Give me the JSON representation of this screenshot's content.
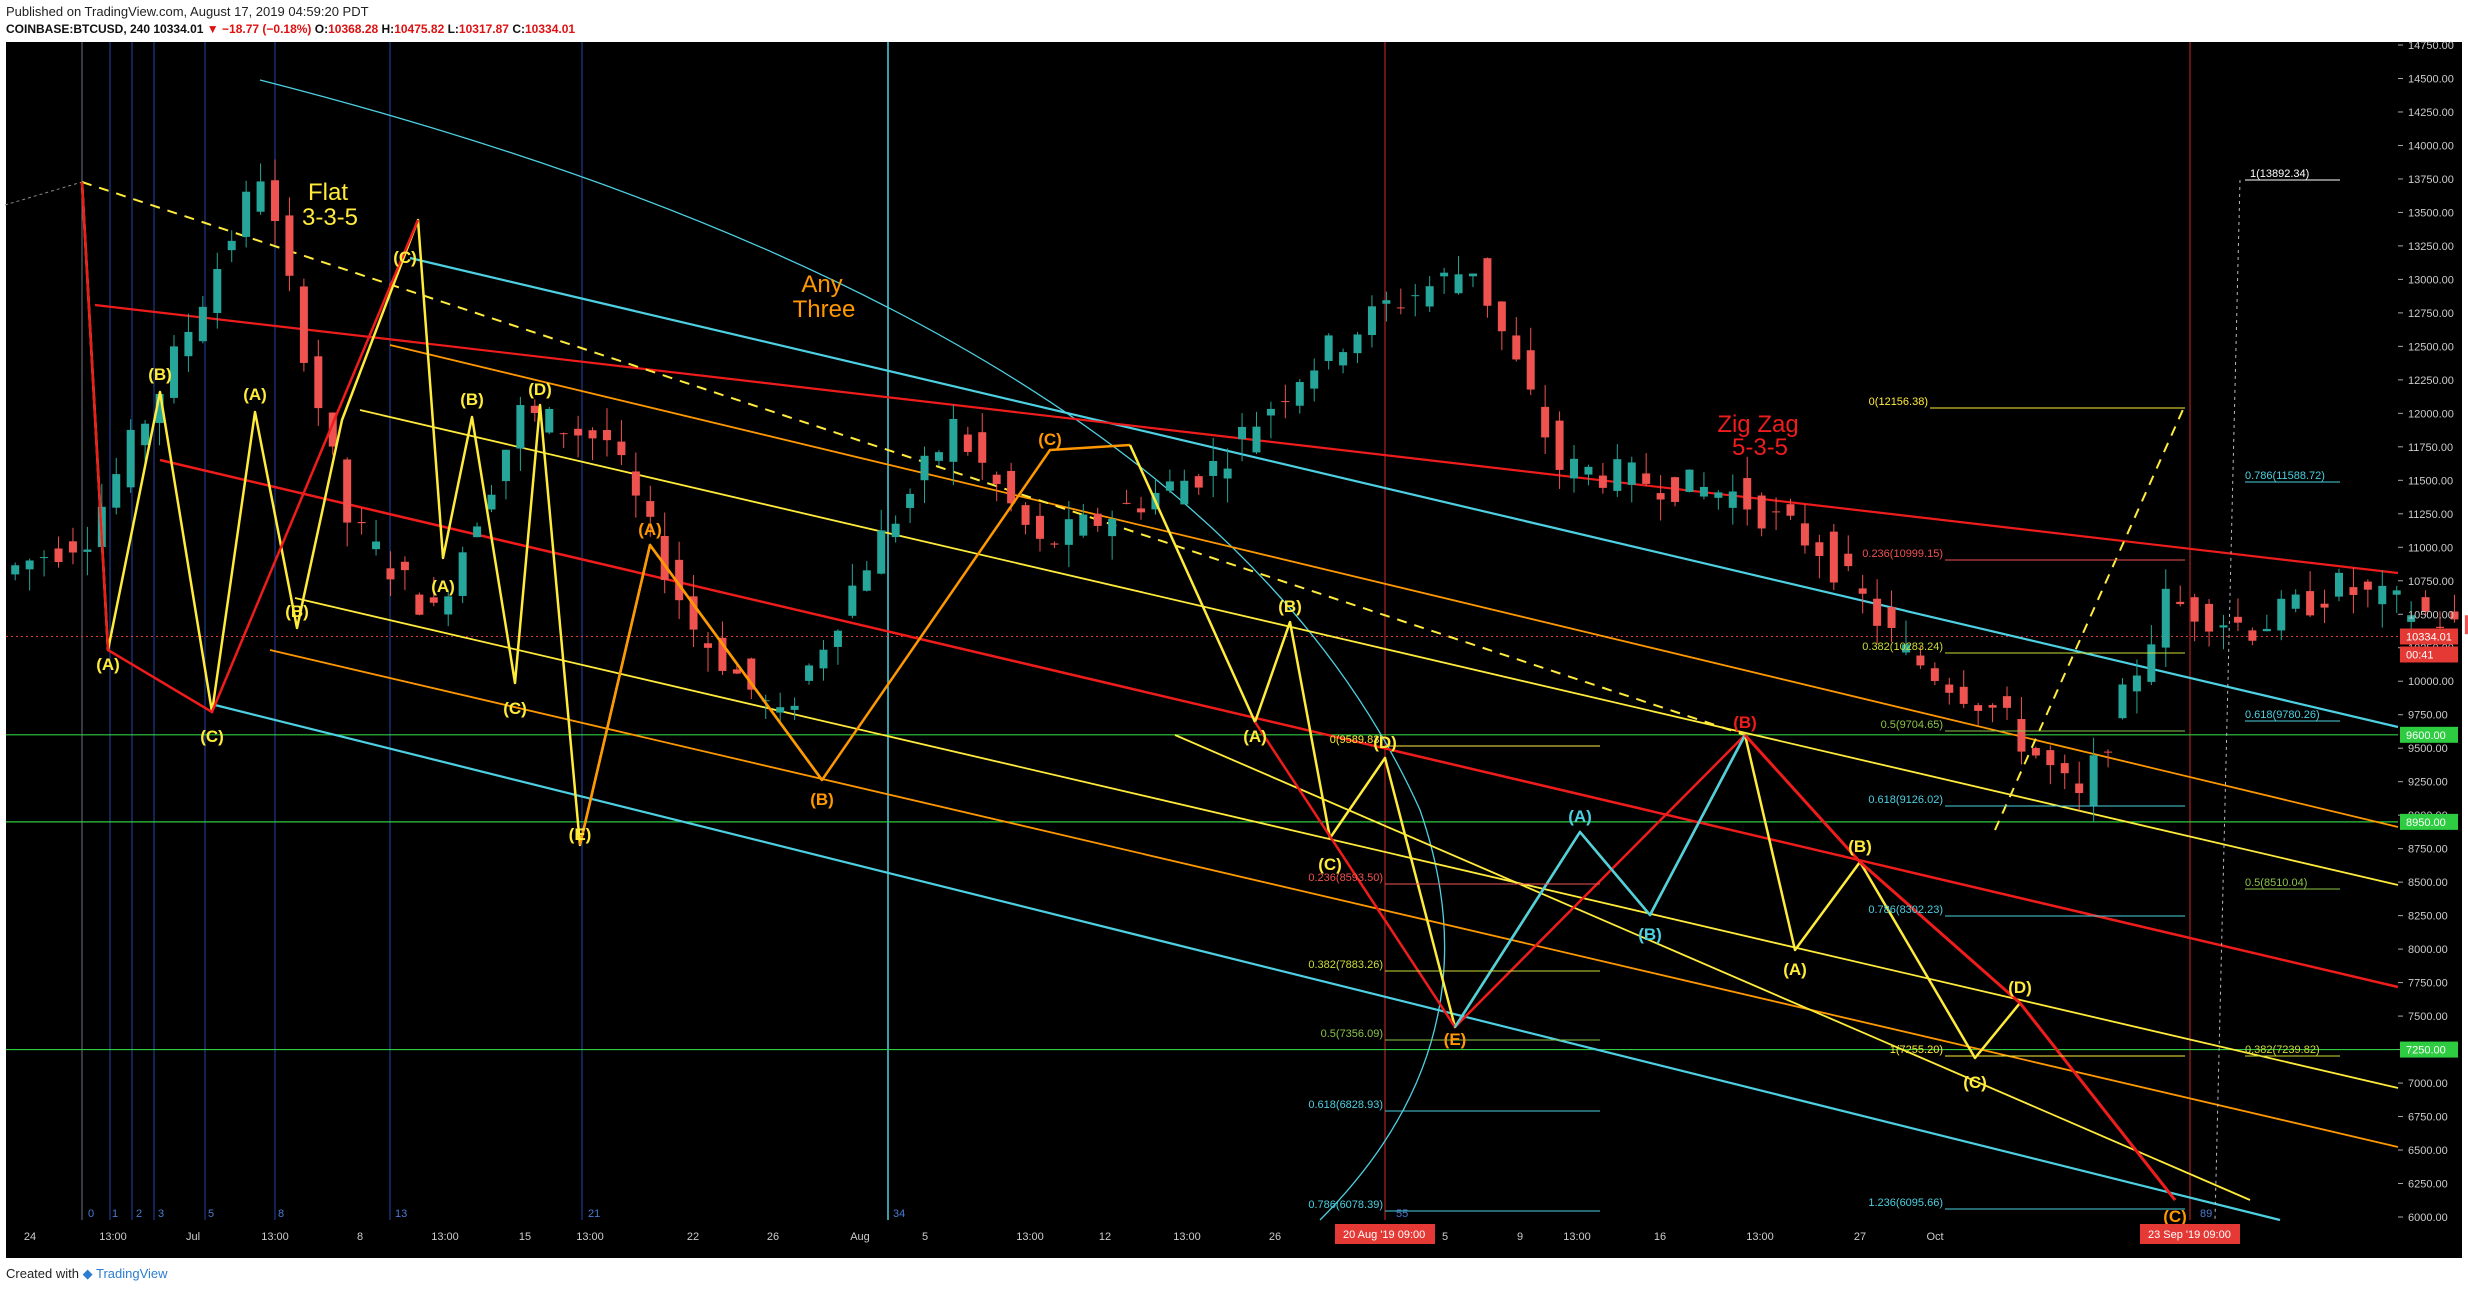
{
  "header": {
    "published": "Published on TradingView.com, August 17, 2019 04:59:20 PDT",
    "symbol": "COINBASE:BTCUSD, 240",
    "last": "10334.01",
    "change": "−18.77 (−0.18%)",
    "o_label": "O:",
    "o": "10368.28",
    "h_label": "H:",
    "h": "10475.82",
    "l_label": "L:",
    "l": "10317.87",
    "c_label": "C:",
    "c": "10334.01"
  },
  "footer": {
    "created": "Created with",
    "brand": "TradingView"
  },
  "chart_data": {
    "type": "candlestick",
    "symbol": "BTCUSD",
    "timeframe": "240",
    "ylim": [
      6000,
      14750
    ],
    "y_ticks": [
      "6000.00",
      "6250.00",
      "6500.00",
      "6750.00",
      "7000.00",
      "7250.00",
      "7500.00",
      "7750.00",
      "8000.00",
      "8250.00",
      "8500.00",
      "8750.00",
      "9000.00",
      "9250.00",
      "9500.00",
      "9750.00",
      "10000.00",
      "10250.00",
      "10500.00",
      "10750.00",
      "11000.00",
      "11250.00",
      "11500.00",
      "11750.00",
      "12000.00",
      "12250.00",
      "12500.00",
      "12750.00",
      "13000.00",
      "13250.00",
      "13500.00",
      "13750.00",
      "14000.00",
      "14250.00",
      "14500.00",
      "14750.00"
    ],
    "x_ticks": [
      "24",
      "13:00",
      "Jul",
      "13:00",
      "8",
      "13:00",
      "15",
      "13:00",
      "22",
      "26",
      "Aug",
      "5",
      "13:00",
      "12",
      "13:00",
      "26",
      "Sep",
      "5",
      "9",
      "13:00",
      "16",
      "13:00",
      "27",
      "Oct"
    ],
    "price_badges": [
      {
        "value": "10334.01",
        "color": "#e53935"
      },
      {
        "value": "00:41",
        "color": "#e53935"
      },
      {
        "value": "9600.00",
        "color": "#2ecc40"
      },
      {
        "value": "8950.00",
        "color": "#2ecc40"
      },
      {
        "value": "7250.00",
        "color": "#2ecc40"
      }
    ],
    "date_badges": [
      {
        "text": "20 Aug '19",
        "time": "09:00"
      },
      {
        "text": "23 Sep '19",
        "time": "09:00"
      }
    ],
    "cycle_numbers": [
      "0",
      "1",
      "2",
      "3",
      "5",
      "8",
      "13",
      "21",
      "34",
      "55",
      "89"
    ],
    "annotations": {
      "flat": [
        "Flat",
        "3-3-5"
      ],
      "any_three": [
        "Any",
        "Three"
      ],
      "zig_zag": [
        "Zig Zag",
        "5-3-5"
      ]
    },
    "wave_labels": [
      "(A)",
      "(B)",
      "(C)",
      "(D)",
      "(E)"
    ],
    "fib_levels": [
      {
        "label": "1(13892.34)",
        "price": 13892.34,
        "color": "#ffffff"
      },
      {
        "label": "0(12156.38)",
        "price": 12156.38,
        "color": "#ffeb3b"
      },
      {
        "label": "0.786(11588.72)",
        "price": 11588.72,
        "color": "#4dd0e1"
      },
      {
        "label": "0.236(10999.15)",
        "price": 10999.15,
        "color": "#ef5350"
      },
      {
        "label": "0.382(10283.24)",
        "price": 10283.24,
        "color": "#cddc39"
      },
      {
        "label": "0.618(9780.26)",
        "price": 9780.26,
        "color": "#4dd0e1"
      },
      {
        "label": "0.5(9704.65)",
        "price": 9704.65,
        "color": "#8bc34a"
      },
      {
        "label": "0(9589.83)",
        "price": 9589.83,
        "color": "#ffeb3b"
      },
      {
        "label": "0.618(9126.02)",
        "price": 9126.02,
        "color": "#4dd0e1"
      },
      {
        "label": "0.236(8593.50)",
        "price": 8593.5,
        "color": "#ef5350"
      },
      {
        "label": "0.5(8510.04)",
        "price": 8510.04,
        "color": "#8bc34a"
      },
      {
        "label": "0.786(8302.23)",
        "price": 8302.23,
        "color": "#4dd0e1"
      },
      {
        "label": "0.382(7883.26)",
        "price": 7883.26,
        "color": "#cddc39"
      },
      {
        "label": "0.5(7356.09)",
        "price": 7356.09,
        "color": "#8bc34a"
      },
      {
        "label": "1(7255.20)",
        "price": 7255.2,
        "color": "#ffeb3b"
      },
      {
        "label": "0.382(7239.82)",
        "price": 7239.82,
        "color": "#cddc39"
      },
      {
        "label": "0.618(6828.93)",
        "price": 6828.93,
        "color": "#4dd0e1"
      },
      {
        "label": "1.236(6095.66)",
        "price": 6095.66,
        "color": "#4dd0e1"
      },
      {
        "label": "0.786(6078.39)",
        "price": 6078.39,
        "color": "#4dd0e1"
      }
    ],
    "price_path": [
      [
        "Jun 23",
        10800
      ],
      [
        "Jun 24",
        11100
      ],
      [
        "Jun 25",
        12400
      ],
      [
        "Jun 26",
        13800
      ],
      [
        "Jun 27",
        11200
      ],
      [
        "Jun 28",
        10500
      ],
      [
        "Jun 29",
        12000
      ],
      [
        "Jun 30",
        11800
      ],
      [
        "Jul 1",
        10400
      ],
      [
        "Jul 2",
        9700
      ],
      [
        "Jul 3",
        10900
      ],
      [
        "Jul 4",
        11900
      ],
      [
        "Jul 5",
        11000
      ],
      [
        "Jul 6",
        11300
      ],
      [
        "Jul 7",
        11600
      ],
      [
        "Jul 8",
        12300
      ],
      [
        "Jul 9",
        12800
      ],
      [
        "Jul 10",
        13100
      ],
      [
        "Jul 11",
        11600
      ],
      [
        "Jul 12",
        11500
      ],
      [
        "Jul 13",
        11400
      ],
      [
        "Jul 14",
        11000
      ],
      [
        "Jul 15",
        10200
      ],
      [
        "Jul 16",
        9800
      ],
      [
        "Jul 17",
        9100
      ],
      [
        "Jul 18",
        10600
      ],
      [
        "Jul 19",
        10400
      ],
      [
        "Jul 20",
        10700
      ],
      [
        "Jul 21",
        10500
      ],
      [
        "Jul 22",
        10200
      ],
      [
        "Jul 23",
        9900
      ],
      [
        "Jul 24",
        9800
      ],
      [
        "Jul 25",
        9900
      ],
      [
        "Jul 26",
        9800
      ],
      [
        "Jul 27",
        9500
      ],
      [
        "Jul 28",
        9400
      ],
      [
        "Jul 29",
        9550
      ],
      [
        "Jul 30",
        9500
      ],
      [
        "Jul 31",
        10000
      ],
      [
        "Aug 1",
        10400
      ],
      [
        "Aug 2",
        10500
      ],
      [
        "Aug 3",
        10800
      ],
      [
        "Aug 4",
        10900
      ],
      [
        "Aug 5",
        11700
      ],
      [
        "Aug 6",
        11800
      ],
      [
        "Aug 7",
        11900
      ],
      [
        "Aug 8",
        11700
      ],
      [
        "Aug 9",
        11800
      ],
      [
        "Aug 10",
        11400
      ],
      [
        "Aug 11",
        11300
      ],
      [
        "Aug 12",
        11400
      ],
      [
        "Aug 13",
        11000
      ],
      [
        "Aug 14",
        10300
      ],
      [
        "Aug 15",
        9800
      ],
      [
        "Aug 16",
        10400
      ],
      [
        "Aug 17",
        10334
      ]
    ]
  }
}
